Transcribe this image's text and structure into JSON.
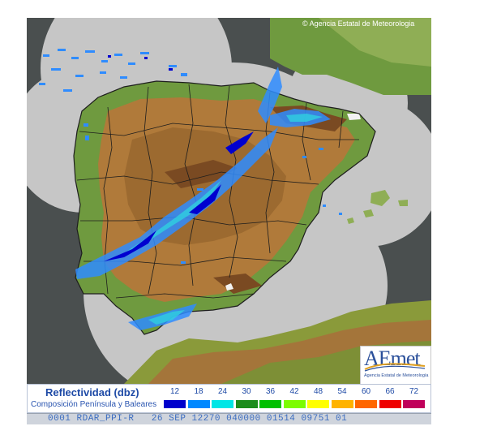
{
  "copyright": "© Agencia Estatal de Meteorologia",
  "logo": {
    "text": "AEmet",
    "subtitle": "Agencia Estatal de Meteorología"
  },
  "legend": {
    "title": "Reflectividad (dbz)",
    "subtitle": "Composición Península y Baleares",
    "scale": [
      {
        "value": "12",
        "color": "#0000cc"
      },
      {
        "value": "18",
        "color": "#0088ff"
      },
      {
        "value": "24",
        "color": "#00e6e6"
      },
      {
        "value": "30",
        "color": "#1c8c1c"
      },
      {
        "value": "36",
        "color": "#00c000"
      },
      {
        "value": "42",
        "color": "#7cfc00"
      },
      {
        "value": "48",
        "color": "#ffff00"
      },
      {
        "value": "54",
        "color": "#ffb300"
      },
      {
        "value": "60",
        "color": "#ff6600"
      },
      {
        "value": "66",
        "color": "#ee0000"
      },
      {
        "value": "72",
        "color": "#c0005a"
      }
    ]
  },
  "footer": {
    "text": "0001 RDAR_PPI-R   26 SEP 12270 040000 01514 09751 01"
  },
  "colors": {
    "sea": "#4a4f4f",
    "coverage": "#c6c6c6",
    "lowland": "#6f9a3f",
    "plateau": "#b07a3a",
    "mountain": "#7a4a22",
    "rain_light": "#2f8cff",
    "rain_mid": "#0000d0",
    "rain_cyan": "#30d0e0"
  }
}
